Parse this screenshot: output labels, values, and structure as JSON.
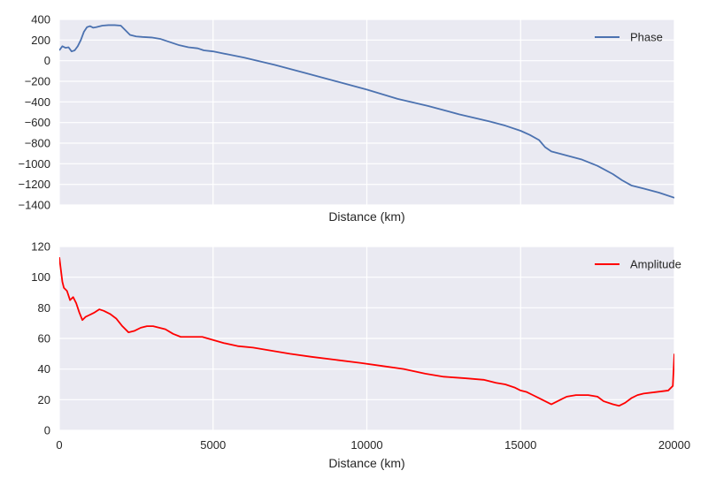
{
  "chart_data": [
    {
      "type": "line",
      "title": "",
      "xlabel": "Distance (km)",
      "ylabel": "",
      "xlim": [
        0,
        20000
      ],
      "ylim": [
        -1400,
        400
      ],
      "xticks": [
        0,
        5000,
        10000,
        15000,
        20000
      ],
      "show_xtick_labels": false,
      "yticks": [
        -1400,
        -1200,
        -1000,
        -800,
        -600,
        -400,
        -200,
        0,
        200,
        400
      ],
      "ytick_labels": [
        "−1400",
        "−1200",
        "−1000",
        "−800",
        "−600",
        "−400",
        "−200",
        "0",
        "200",
        "400"
      ],
      "grid": true,
      "legend_position": "top-right",
      "series": [
        {
          "name": "Phase",
          "color": "#4c72b0",
          "x": [
            0,
            100,
            200,
            300,
            400,
            500,
            600,
            700,
            800,
            900,
            1000,
            1100,
            1200,
            1400,
            1600,
            1800,
            2000,
            2100,
            2300,
            2500,
            2700,
            3000,
            3300,
            3600,
            3900,
            4200,
            4500,
            4700,
            5000,
            5500,
            6000,
            7000,
            8000,
            9000,
            10000,
            11000,
            12000,
            13000,
            14000,
            14500,
            15000,
            15300,
            15600,
            15800,
            16000,
            16500,
            17000,
            17500,
            18000,
            18300,
            18600,
            19000,
            19500,
            20000
          ],
          "y": [
            100,
            140,
            125,
            130,
            90,
            100,
            140,
            200,
            280,
            325,
            335,
            320,
            325,
            340,
            345,
            345,
            340,
            310,
            250,
            235,
            230,
            225,
            210,
            180,
            150,
            130,
            120,
            100,
            90,
            60,
            30,
            -40,
            -120,
            -200,
            -280,
            -370,
            -440,
            -520,
            -590,
            -630,
            -680,
            -720,
            -770,
            -840,
            -880,
            -920,
            -960,
            -1020,
            -1100,
            -1160,
            -1210,
            -1240,
            -1280,
            -1330
          ]
        }
      ]
    },
    {
      "type": "line",
      "title": "",
      "xlabel": "Distance (km)",
      "ylabel": "",
      "xlim": [
        0,
        20000
      ],
      "ylim": [
        0,
        120
      ],
      "xticks": [
        0,
        5000,
        10000,
        15000,
        20000
      ],
      "show_xtick_labels": true,
      "yticks": [
        0,
        20,
        40,
        60,
        80,
        100,
        120
      ],
      "ytick_labels": [
        "0",
        "20",
        "40",
        "60",
        "80",
        "100",
        "120"
      ],
      "grid": true,
      "legend_position": "top-right",
      "series": [
        {
          "name": "Amplitude",
          "color": "#ff0000",
          "x": [
            0,
            50,
            100,
            150,
            250,
            350,
            450,
            550,
            650,
            750,
            850,
            950,
            1050,
            1150,
            1300,
            1450,
            1650,
            1850,
            2050,
            2250,
            2450,
            2650,
            2850,
            3050,
            3250,
            3450,
            3700,
            3950,
            4250,
            4650,
            5000,
            5350,
            5800,
            6300,
            6900,
            7500,
            8200,
            9000,
            9800,
            10500,
            11200,
            11900,
            12500,
            13200,
            13800,
            14200,
            14500,
            14800,
            15000,
            15200,
            15400,
            15600,
            15800,
            16000,
            16200,
            16500,
            16800,
            17000,
            17200,
            17500,
            17700,
            18000,
            18200,
            18400,
            18600,
            18800,
            19000,
            19400,
            19800,
            19950,
            20000
          ],
          "y": [
            113,
            105,
            97,
            93,
            91,
            85,
            87,
            83,
            77,
            72,
            74,
            75,
            76,
            77,
            79,
            78,
            76,
            73,
            68,
            64,
            65,
            67,
            68,
            68,
            67,
            66,
            63,
            61,
            61,
            61,
            59,
            57,
            55,
            54,
            52,
            50,
            48,
            46,
            44,
            42,
            40,
            37,
            35,
            34,
            33,
            31,
            30,
            28,
            26,
            25,
            23,
            21,
            19,
            17,
            19,
            22,
            23,
            23,
            23,
            22,
            19,
            17,
            16,
            18,
            21,
            23,
            24,
            25,
            26,
            29,
            50
          ]
        }
      ]
    }
  ]
}
